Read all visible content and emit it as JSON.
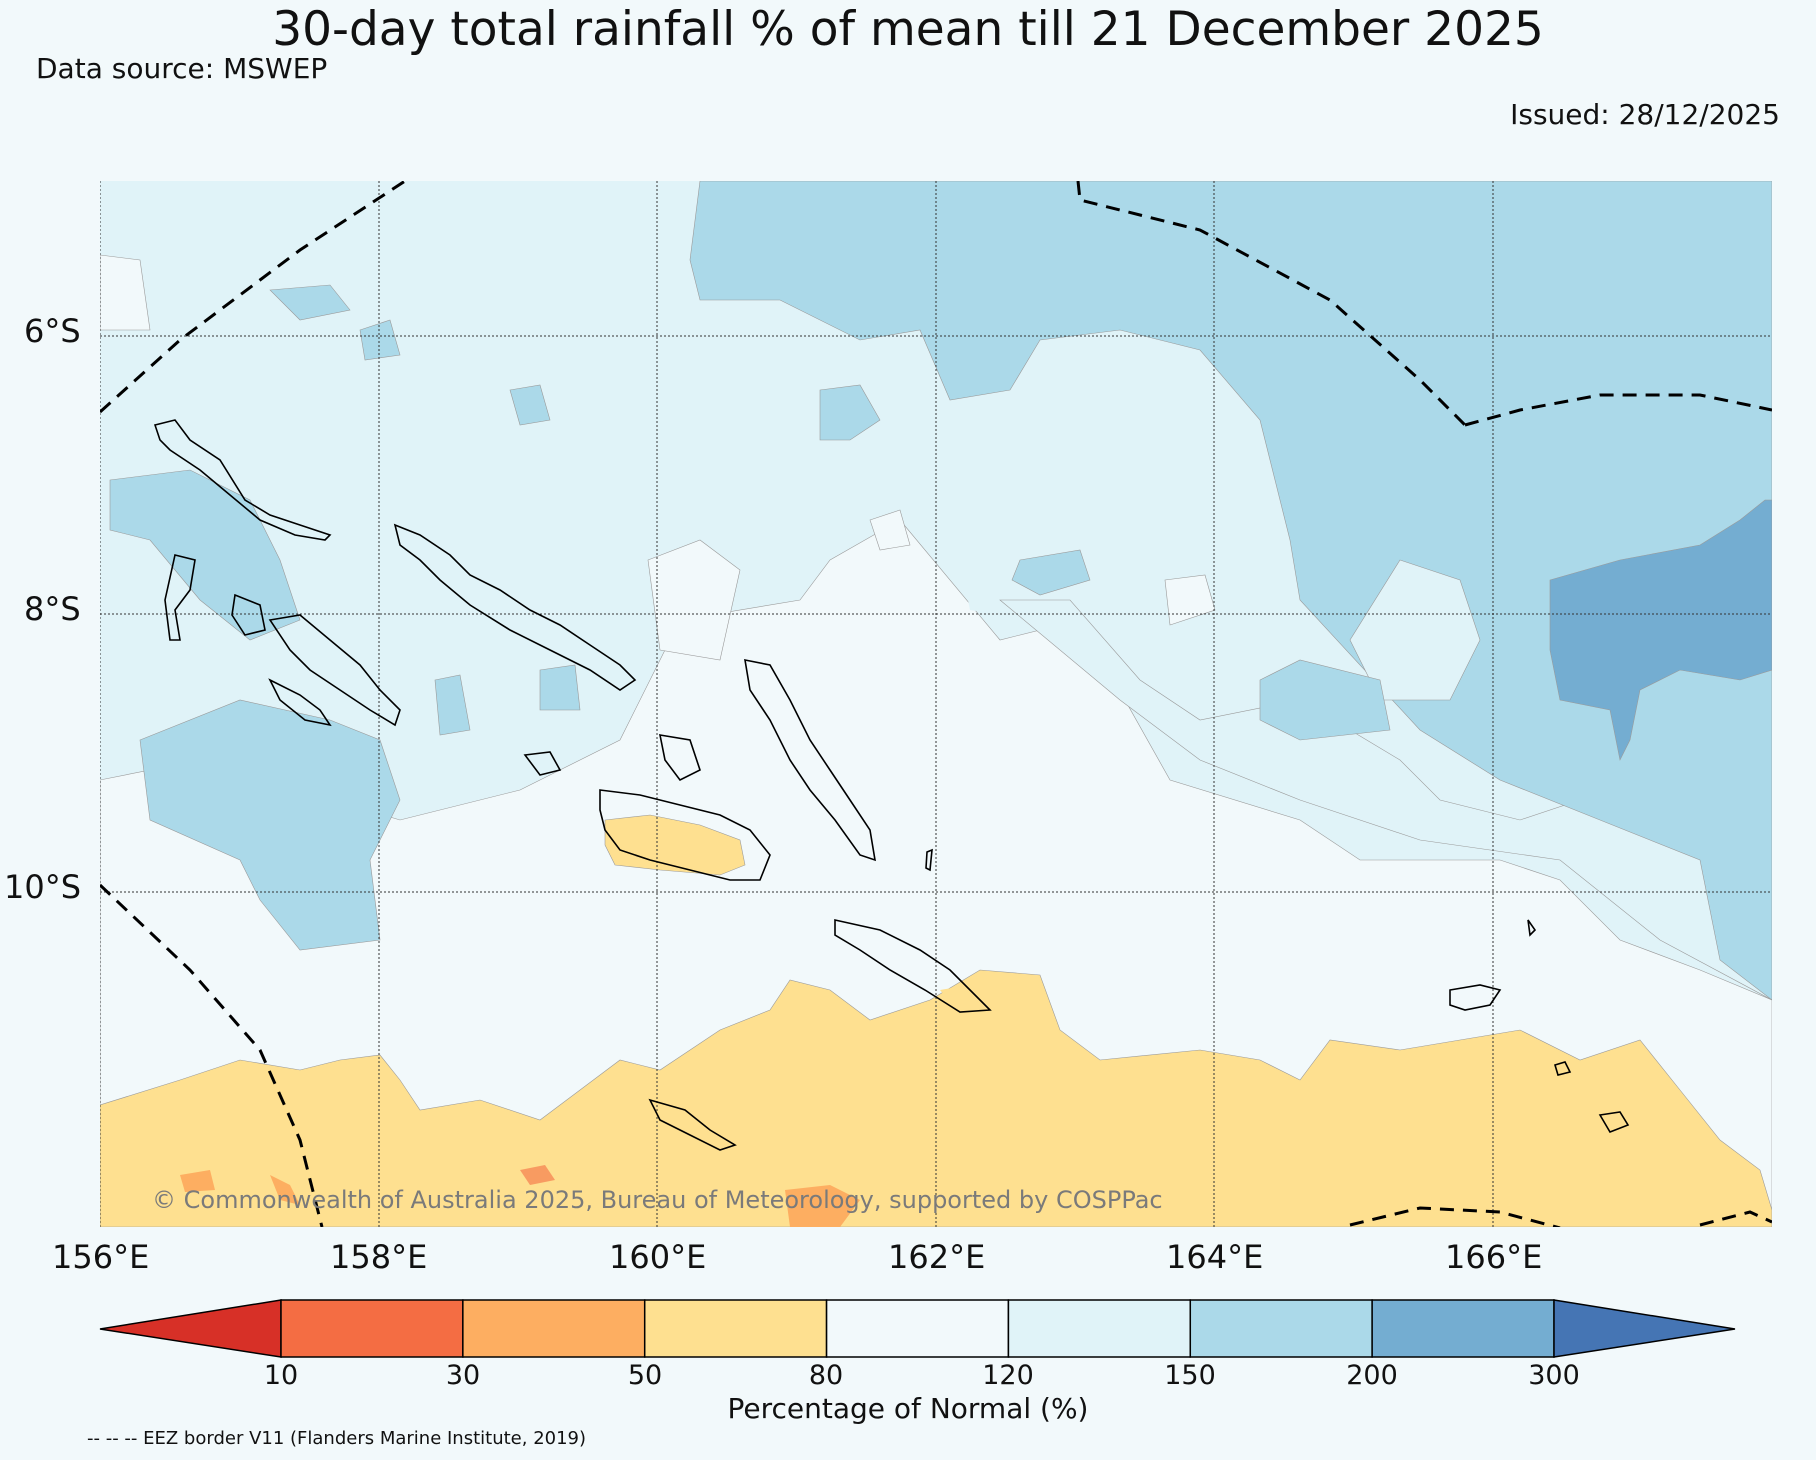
{
  "title": "30-day total rainfall % of mean till 21 December 2025",
  "data_source": "Data source: MSWEP",
  "issued": "Issued: 28/12/2025",
  "copyright": "© Commonwealth of Australia 2025, Bureau of Meteorology, supported by COSPPac",
  "eez_note": "-- -- -- EEZ border V11 (Flanders Marine Institute, 2019)",
  "map": {
    "lat_labels": [
      "6°S",
      "8°S",
      "10°S"
    ],
    "lon_labels": [
      "156°E",
      "158°E",
      "160°E",
      "162°E",
      "164°E",
      "166°E"
    ]
  },
  "colorbar": {
    "label": "Percentage of Normal (%)",
    "ticks": [
      "10",
      "30",
      "50",
      "80",
      "120",
      "150",
      "200",
      "300"
    ],
    "colors": [
      "#d73027",
      "#f46d43",
      "#fdae61",
      "#fee090",
      "#f2f9fb",
      "#e0f3f8",
      "#abd9e9",
      "#74add1",
      "#4575b4"
    ]
  }
}
